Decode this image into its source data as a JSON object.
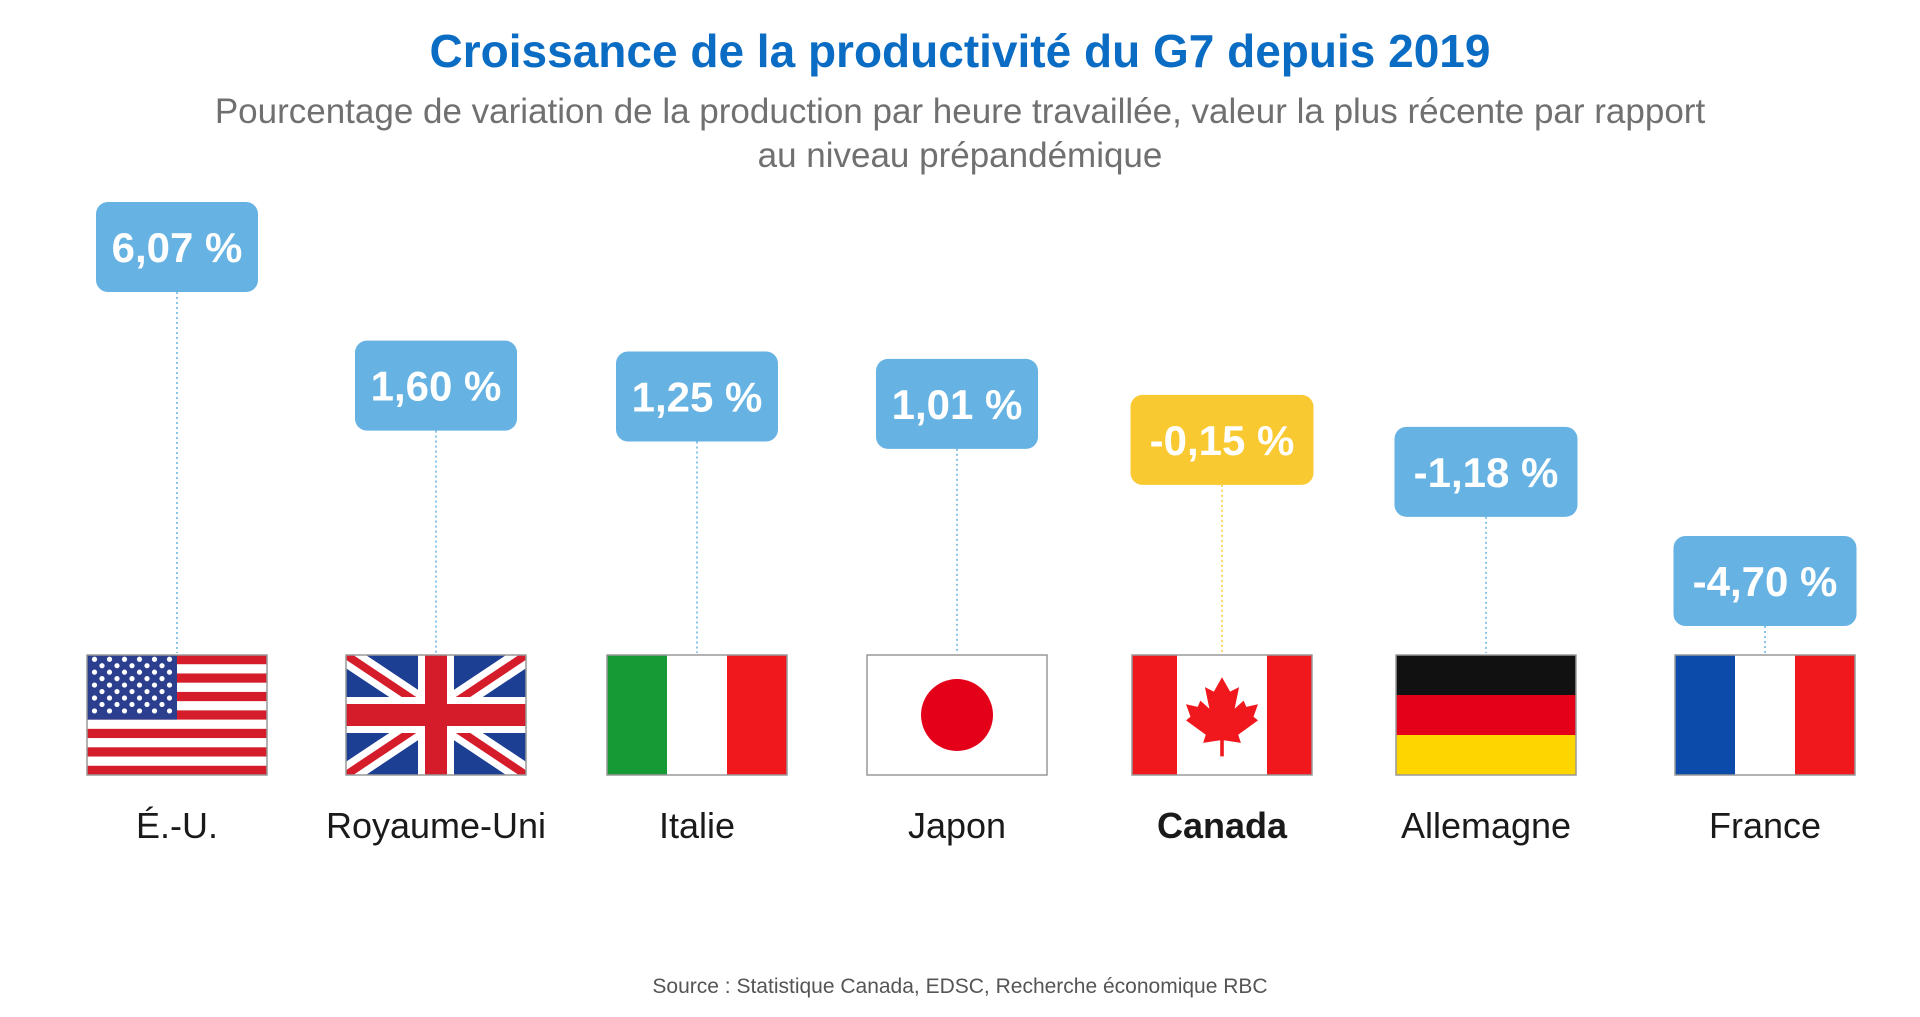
{
  "chart_data": {
    "type": "bar",
    "title": "Croissance de la productivité du G7 depuis 2019",
    "subtitle": "Pourcentage de variation de la production par heure travaillée, valeur la plus récente par rapport au niveau prépandémique",
    "source": "Source : Statistique Canada, EDSC, Recherche économique RBC",
    "unit": "%",
    "categories": [
      "É.-U.",
      "Royaume-Uni",
      "Italie",
      "Japon",
      "Canada",
      "Allemagne",
      "France"
    ],
    "values": [
      6.07,
      1.6,
      1.25,
      1.01,
      -0.15,
      -1.18,
      -4.7
    ],
    "value_labels": [
      "6,07 %",
      "1,60 %",
      "1,25 %",
      "1,01 %",
      "-0,15 %",
      "-1,18 %",
      "-4,70 %"
    ],
    "flags": [
      "us-flag-icon",
      "uk-flag-icon",
      "italy-flag-icon",
      "japan-flag-icon",
      "canada-flag-icon",
      "germany-flag-icon",
      "france-flag-icon"
    ],
    "highlight_category": "Canada",
    "colors": {
      "default_label": "#65b2e3",
      "highlight_label": "#f9c931",
      "title": "#0b6cc4"
    },
    "grid": false,
    "legend": "none"
  }
}
